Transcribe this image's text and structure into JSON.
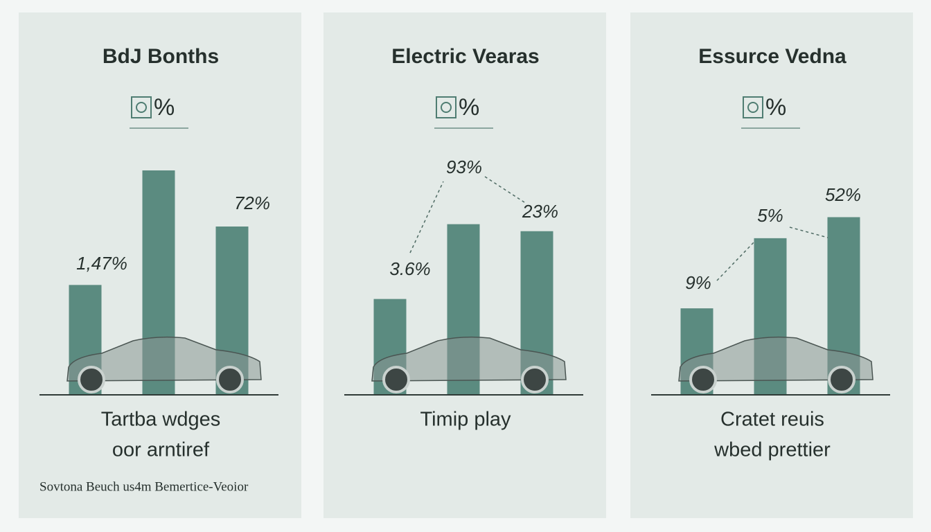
{
  "chart_data": [
    {
      "type": "bar",
      "title": "BdJ Bonths",
      "icon_label": "%",
      "values": [
        47,
        96,
        72
      ],
      "color": "#5b8b80",
      "annotations": [
        "1,47%",
        "72%"
      ],
      "caption": [
        "Tartba wdges",
        "oor arntiref"
      ],
      "footnote": "Sovtona Beuch us4m Bemertice-Veoior"
    },
    {
      "type": "bar",
      "title": "Electric Vearas",
      "icon_label": "%",
      "values": [
        41,
        73,
        70
      ],
      "color": "#5b8b80",
      "annotations": [
        "3.6%",
        "93%",
        "23%"
      ],
      "caption": [
        "Timip play"
      ]
    },
    {
      "type": "bar",
      "title": "Essurce Vedna",
      "icon_label": "%",
      "values": [
        37,
        67,
        76
      ],
      "color": "#5b8b80",
      "annotations": [
        "9%",
        "5%",
        "52%"
      ],
      "caption": [
        "Cratet reuis",
        "wbed prettier"
      ]
    }
  ]
}
